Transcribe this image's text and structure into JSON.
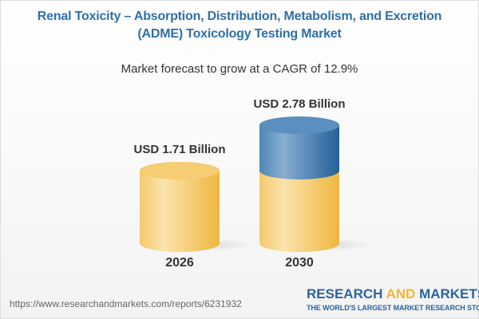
{
  "title_line1": "Renal Toxicity – Absorption, Distribution, Metabolism, and Excretion",
  "title_line2": "(ADME) Toxicology Testing Market",
  "subtitle": "Market forecast to grow at a CAGR of 12.9%",
  "chart_data": {
    "type": "bar",
    "style": "3d-cylinder",
    "categories": [
      "2026",
      "2030"
    ],
    "values": [
      1.71,
      2.78
    ],
    "unit": "USD Billion",
    "data_labels": [
      "USD 1.71 Billion",
      "USD 2.78 Billion"
    ],
    "colors": {
      "base": "#f2c55f",
      "growth": "#3a78b0"
    }
  },
  "footer": {
    "url": "https://www.researchandmarkets.com/reports/6231932",
    "logo_part1": "RESEARCH ",
    "logo_part2": "AND",
    "logo_part3": " MARKETS",
    "tagline": "THE WORLD'S LARGEST MARKET RESEARCH STORE"
  }
}
